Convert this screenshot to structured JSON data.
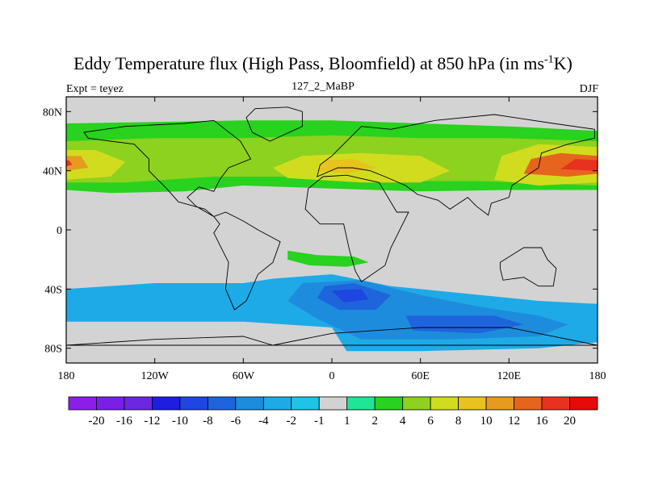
{
  "title_parts": {
    "main": "Eddy Temperature flux (High Pass, Bloomfield) at 850 hPa (in ms",
    "sup": "-1",
    "end": "K)"
  },
  "subtitle": "127_2_MaBP",
  "left_label": "Expt = teyez",
  "right_label": "DJF",
  "chart_data": {
    "type": "heatmap",
    "title": "Eddy Temperature flux (High Pass, Bloomfield) at 850 hPa (in ms-1K)",
    "xlabel": "",
    "ylabel": "",
    "xlim": [
      -180,
      180
    ],
    "ylim": [
      -90,
      90
    ],
    "x_ticks": [
      {
        "value": -180,
        "label": "180"
      },
      {
        "value": -120,
        "label": "120W"
      },
      {
        "value": -60,
        "label": "60W"
      },
      {
        "value": 0,
        "label": "0"
      },
      {
        "value": 60,
        "label": "60E"
      },
      {
        "value": 120,
        "label": "120E"
      },
      {
        "value": 180,
        "label": "180"
      }
    ],
    "y_ticks": [
      {
        "value": 80,
        "label": "80N"
      },
      {
        "value": 40,
        "label": "40N"
      },
      {
        "value": 0,
        "label": "0"
      },
      {
        "value": -40,
        "label": "40S"
      },
      {
        "value": -80,
        "label": "80S"
      }
    ],
    "colorbar": {
      "labels": [
        "-20",
        "-16",
        "-12",
        "-10",
        "-8",
        "-6",
        "-4",
        "-2",
        "-1",
        "1",
        "2",
        "4",
        "6",
        "8",
        "10",
        "12",
        "16",
        "20"
      ],
      "colors": [
        "#8c1ee8",
        "#7a1ee8",
        "#6c28e0",
        "#1e1ee0",
        "#1e46e0",
        "#1e64dc",
        "#1e8cdc",
        "#1eaae6",
        "#1ec3e6",
        "#d2d2d2",
        "#1ee696",
        "#28d21e",
        "#8cd21e",
        "#d2dc1e",
        "#e6c31e",
        "#e69b1e",
        "#e6641e",
        "#e6321e",
        "#e60a0a"
      ]
    },
    "background_color": "#d3d3d3",
    "features": [
      {
        "name": "NH storm band",
        "level": 2,
        "polygon": [
          [
            -180,
            27
          ],
          [
            -150,
            25
          ],
          [
            -100,
            26
          ],
          [
            -60,
            30
          ],
          [
            0,
            28
          ],
          [
            60,
            26
          ],
          [
            120,
            27
          ],
          [
            180,
            27
          ],
          [
            180,
            67
          ],
          [
            120,
            70
          ],
          [
            60,
            72
          ],
          [
            0,
            74
          ],
          [
            -60,
            74
          ],
          [
            -120,
            73
          ],
          [
            -180,
            72
          ]
        ]
      },
      {
        "name": "NH band core",
        "level": 4,
        "polygon": [
          [
            -180,
            32
          ],
          [
            -140,
            32
          ],
          [
            -80,
            36
          ],
          [
            -20,
            36
          ],
          [
            40,
            33
          ],
          [
            100,
            33
          ],
          [
            180,
            30
          ],
          [
            180,
            60
          ],
          [
            120,
            62
          ],
          [
            60,
            62
          ],
          [
            0,
            64
          ],
          [
            -60,
            62
          ],
          [
            -120,
            62
          ],
          [
            -180,
            60
          ]
        ]
      },
      {
        "name": "NH Atlantic",
        "level": 6,
        "polygon": [
          [
            -30,
            35
          ],
          [
            20,
            32
          ],
          [
            60,
            32
          ],
          [
            80,
            40
          ],
          [
            60,
            50
          ],
          [
            20,
            52
          ],
          [
            -20,
            50
          ],
          [
            -40,
            42
          ]
        ]
      },
      {
        "name": "NH Pacific west",
        "level": 6,
        "polygon": [
          [
            -180,
            34
          ],
          [
            -150,
            36
          ],
          [
            -140,
            46
          ],
          [
            -160,
            54
          ],
          [
            -180,
            54
          ]
        ]
      },
      {
        "name": "NH Pacific east",
        "level": 6,
        "polygon": [
          [
            110,
            34
          ],
          [
            140,
            30
          ],
          [
            180,
            32
          ],
          [
            180,
            56
          ],
          [
            140,
            58
          ],
          [
            115,
            50
          ]
        ]
      },
      {
        "name": "NH Atlantic core",
        "level": 8,
        "polygon": [
          [
            -10,
            40
          ],
          [
            10,
            38
          ],
          [
            30,
            42
          ],
          [
            15,
            48
          ],
          [
            -5,
            47
          ]
        ]
      },
      {
        "name": "NH Pacific east core",
        "level": 12,
        "polygon": [
          [
            130,
            38
          ],
          [
            160,
            36
          ],
          [
            180,
            38
          ],
          [
            180,
            50
          ],
          [
            155,
            52
          ],
          [
            135,
            48
          ]
        ]
      },
      {
        "name": "NH Pacific west core",
        "level": 10,
        "polygon": [
          [
            -180,
            40
          ],
          [
            -165,
            42
          ],
          [
            -170,
            50
          ],
          [
            -180,
            50
          ]
        ]
      },
      {
        "name": "NH Pacific max",
        "level": 16,
        "polygon": [
          [
            155,
            41
          ],
          [
            180,
            40
          ],
          [
            180,
            47
          ],
          [
            165,
            48
          ]
        ]
      },
      {
        "name": "NH Pacific west max",
        "level": 16,
        "polygon": [
          [
            -180,
            43
          ],
          [
            -176,
            44
          ],
          [
            -178,
            47
          ],
          [
            -180,
            47
          ]
        ]
      },
      {
        "name": "Tropical S Atlantic",
        "level": 2,
        "polygon": [
          [
            -30,
            -14
          ],
          [
            -10,
            -17
          ],
          [
            15,
            -18
          ],
          [
            25,
            -22
          ],
          [
            10,
            -25
          ],
          [
            -15,
            -24
          ],
          [
            -30,
            -20
          ]
        ]
      },
      {
        "name": "SH storm band",
        "level": -2,
        "polygon": [
          [
            -180,
            -40
          ],
          [
            -120,
            -36
          ],
          [
            -60,
            -36
          ],
          [
            -40,
            -33
          ],
          [
            0,
            -30
          ],
          [
            40,
            -38
          ],
          [
            80,
            -42
          ],
          [
            140,
            -48
          ],
          [
            180,
            -50
          ],
          [
            180,
            -76
          ],
          [
            140,
            -80
          ],
          [
            60,
            -82
          ],
          [
            10,
            -82
          ],
          [
            0,
            -66
          ],
          [
            -60,
            -62
          ],
          [
            -120,
            -62
          ],
          [
            -180,
            -62
          ]
        ]
      },
      {
        "name": "SH storm core",
        "level": -4,
        "polygon": [
          [
            -20,
            -36
          ],
          [
            20,
            -34
          ],
          [
            60,
            -44
          ],
          [
            100,
            -52
          ],
          [
            140,
            -58
          ],
          [
            160,
            -64
          ],
          [
            140,
            -72
          ],
          [
            80,
            -74
          ],
          [
            20,
            -74
          ],
          [
            -10,
            -60
          ],
          [
            -30,
            -48
          ]
        ]
      },
      {
        "name": "SH Atlantic core",
        "level": -6,
        "polygon": [
          [
            -5,
            -38
          ],
          [
            15,
            -36
          ],
          [
            40,
            -44
          ],
          [
            30,
            -54
          ],
          [
            5,
            -54
          ],
          [
            -10,
            -46
          ]
        ]
      },
      {
        "name": "SH Atlantic max",
        "level": -8,
        "polygon": [
          [
            0,
            -41
          ],
          [
            20,
            -40
          ],
          [
            25,
            -47
          ],
          [
            8,
            -49
          ]
        ]
      },
      {
        "name": "SH Indian core",
        "level": -6,
        "polygon": [
          [
            50,
            -58
          ],
          [
            110,
            -58
          ],
          [
            130,
            -64
          ],
          [
            100,
            -70
          ],
          [
            55,
            -68
          ]
        ]
      }
    ]
  }
}
